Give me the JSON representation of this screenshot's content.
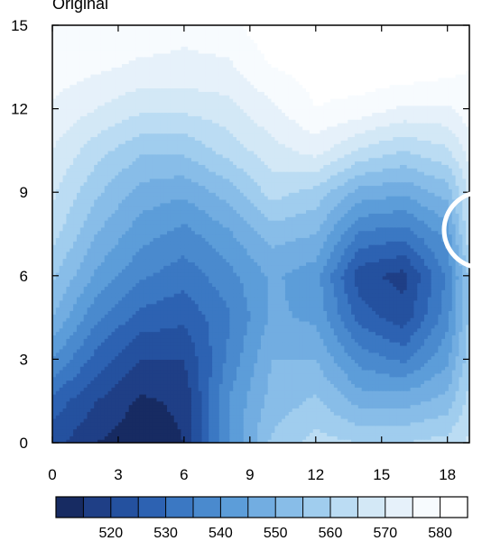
{
  "chart_data": {
    "type": "heatmap",
    "title": "Original",
    "xlabel": "",
    "ylabel": "",
    "xlim": [
      0,
      19
    ],
    "ylim": [
      0,
      15
    ],
    "x_ticks": [
      "0",
      "3",
      "6",
      "9",
      "12",
      "15",
      "18"
    ],
    "y_ticks": [
      "0",
      "3",
      "6",
      "9",
      "12",
      "15"
    ],
    "contour_levels": [
      515,
      520,
      525,
      530,
      535,
      540,
      545,
      550,
      555,
      560,
      565,
      570,
      575,
      580
    ],
    "colorbar_labels": [
      "520",
      "530",
      "540",
      "550",
      "560",
      "570",
      "580"
    ],
    "colors": [
      "#172b62",
      "#1f3f86",
      "#24519f",
      "#2d62b2",
      "#3b78c3",
      "#4a8ace",
      "#5c9dd9",
      "#72ade1",
      "#88bde8",
      "#a0cdee",
      "#bbdcf3",
      "#d3e8f6",
      "#e6f1fa",
      "#f7fbfe",
      "#ffffff"
    ],
    "x_coords": [
      0,
      2,
      4,
      6,
      8,
      10,
      12,
      14,
      16,
      18,
      19
    ],
    "y_coords": [
      0,
      1.5,
      3,
      4.5,
      6,
      7.5,
      9,
      10.5,
      12,
      13.5,
      15
    ],
    "grid": [
      [
        522,
        515,
        512,
        515,
        540,
        556,
        562,
        560,
        560,
        562,
        566
      ],
      [
        528,
        520,
        514,
        516,
        540,
        552,
        556,
        548,
        548,
        552,
        562
      ],
      [
        540,
        528,
        520,
        520,
        536,
        550,
        550,
        538,
        534,
        544,
        558
      ],
      [
        550,
        536,
        528,
        526,
        534,
        546,
        544,
        528,
        522,
        538,
        556
      ],
      [
        556,
        544,
        536,
        532,
        538,
        546,
        542,
        522,
        518,
        536,
        556
      ],
      [
        562,
        550,
        542,
        538,
        544,
        552,
        550,
        534,
        532,
        542,
        564
      ],
      [
        566,
        556,
        548,
        546,
        552,
        562,
        558,
        548,
        546,
        552,
        566
      ],
      [
        570,
        562,
        556,
        556,
        562,
        568,
        572,
        564,
        560,
        564,
        572
      ],
      [
        574,
        570,
        566,
        566,
        568,
        574,
        580,
        578,
        574,
        574,
        578
      ],
      [
        578,
        576,
        574,
        574,
        574,
        580,
        582,
        584,
        584,
        582,
        580
      ],
      [
        580,
        580,
        578,
        576,
        578,
        584,
        586,
        588,
        586,
        584,
        582
      ]
    ]
  }
}
